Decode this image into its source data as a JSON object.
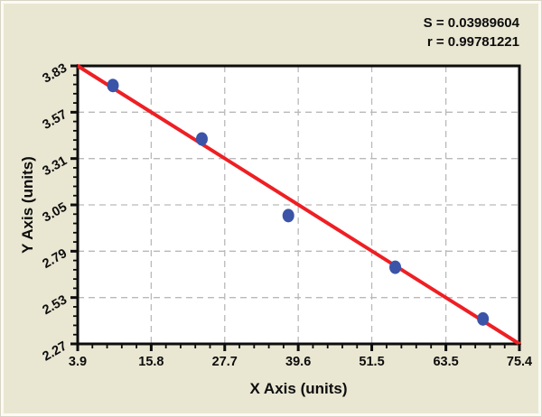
{
  "stats": {
    "s_line": "S = 0.03989604",
    "r_line": "r = 0.99781221"
  },
  "chart_data": {
    "type": "scatter",
    "xlabel": "X Axis (units)",
    "ylabel": "Y Axis (units)",
    "xlim": [
      3.9,
      75.4
    ],
    "ylim": [
      2.27,
      3.83
    ],
    "xticks": [
      3.9,
      15.8,
      27.7,
      39.6,
      51.5,
      63.5,
      75.4
    ],
    "xtick_labels": [
      "3.9",
      "15.8",
      "27.7",
      "39.6",
      "51.5",
      "63.5",
      "75.4"
    ],
    "yticks": [
      2.27,
      2.53,
      2.79,
      3.05,
      3.31,
      3.57,
      3.83
    ],
    "ytick_labels": [
      "2.27",
      "2.53",
      "2.79",
      "3.05",
      "3.31",
      "3.57",
      "3.83"
    ],
    "minor_ticks_between_majors": 4,
    "grid": "dashed",
    "legend": "none",
    "points": [
      {
        "x": 9.6,
        "y": 3.72
      },
      {
        "x": 24.0,
        "y": 3.42
      },
      {
        "x": 38.0,
        "y": 2.99
      },
      {
        "x": 55.3,
        "y": 2.7
      },
      {
        "x": 69.5,
        "y": 2.41
      }
    ],
    "regression_line": {
      "x1": 3.9,
      "y1": 3.83,
      "x2": 75.4,
      "y2": 2.27
    },
    "annotations": [
      "S = 0.03989604",
      "r = 0.99781221"
    ],
    "colors": {
      "point": "#3b54a8",
      "line": "#ee1f24",
      "grid": "#b9b9b9",
      "axis": "#0d0d0d",
      "plot_bg": "#ffffff",
      "page_bg": "#e9e6d2"
    }
  }
}
